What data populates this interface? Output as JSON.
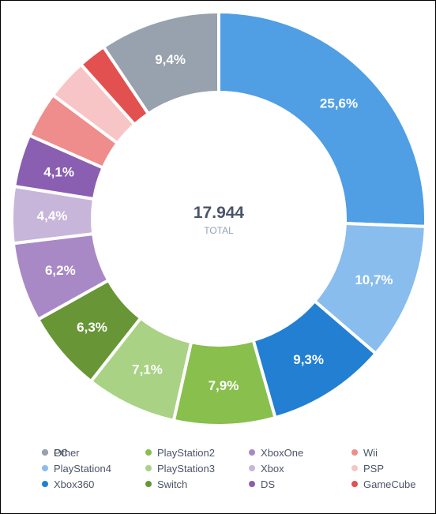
{
  "chart_data": {
    "type": "pie",
    "variant": "donut",
    "total": {
      "value": "17.944",
      "label": "TOTAL"
    },
    "categories": [
      "PC",
      "PlayStation4",
      "Xbox360",
      "PlayStation2",
      "PlayStation3",
      "Switch",
      "XboxOne",
      "Xbox",
      "DS",
      "Wii",
      "PSP",
      "GameCube",
      "Other"
    ],
    "values": [
      25.6,
      10.7,
      9.3,
      7.9,
      7.1,
      6.3,
      6.2,
      4.4,
      4.1,
      3.6,
      3.2,
      2.2,
      9.4
    ],
    "labels": [
      "25,6%",
      "10,7%",
      "9,3%",
      "7,9%",
      "7,1%",
      "6,3%",
      "6,2%",
      "4,4%",
      "4,1%",
      "",
      "",
      "",
      "9,4%"
    ],
    "colors": [
      "#509ee3",
      "#88bdee",
      "#227fd2",
      "#88bf4d",
      "#a9d285",
      "#689636",
      "#a989c5",
      "#c8b5da",
      "#8a5eb0",
      "#ef8c8c",
      "#f7c5c5",
      "#e35050",
      "#98a1ae"
    ],
    "legend": {
      "placement": "bottom",
      "order": [
        "PC",
        "PlayStation4",
        "Xbox360",
        "PlayStation2",
        "PlayStation3",
        "Switch",
        "XboxOne",
        "Xbox",
        "DS",
        "Wii",
        "PSP",
        "GameCube",
        "Other"
      ]
    }
  }
}
